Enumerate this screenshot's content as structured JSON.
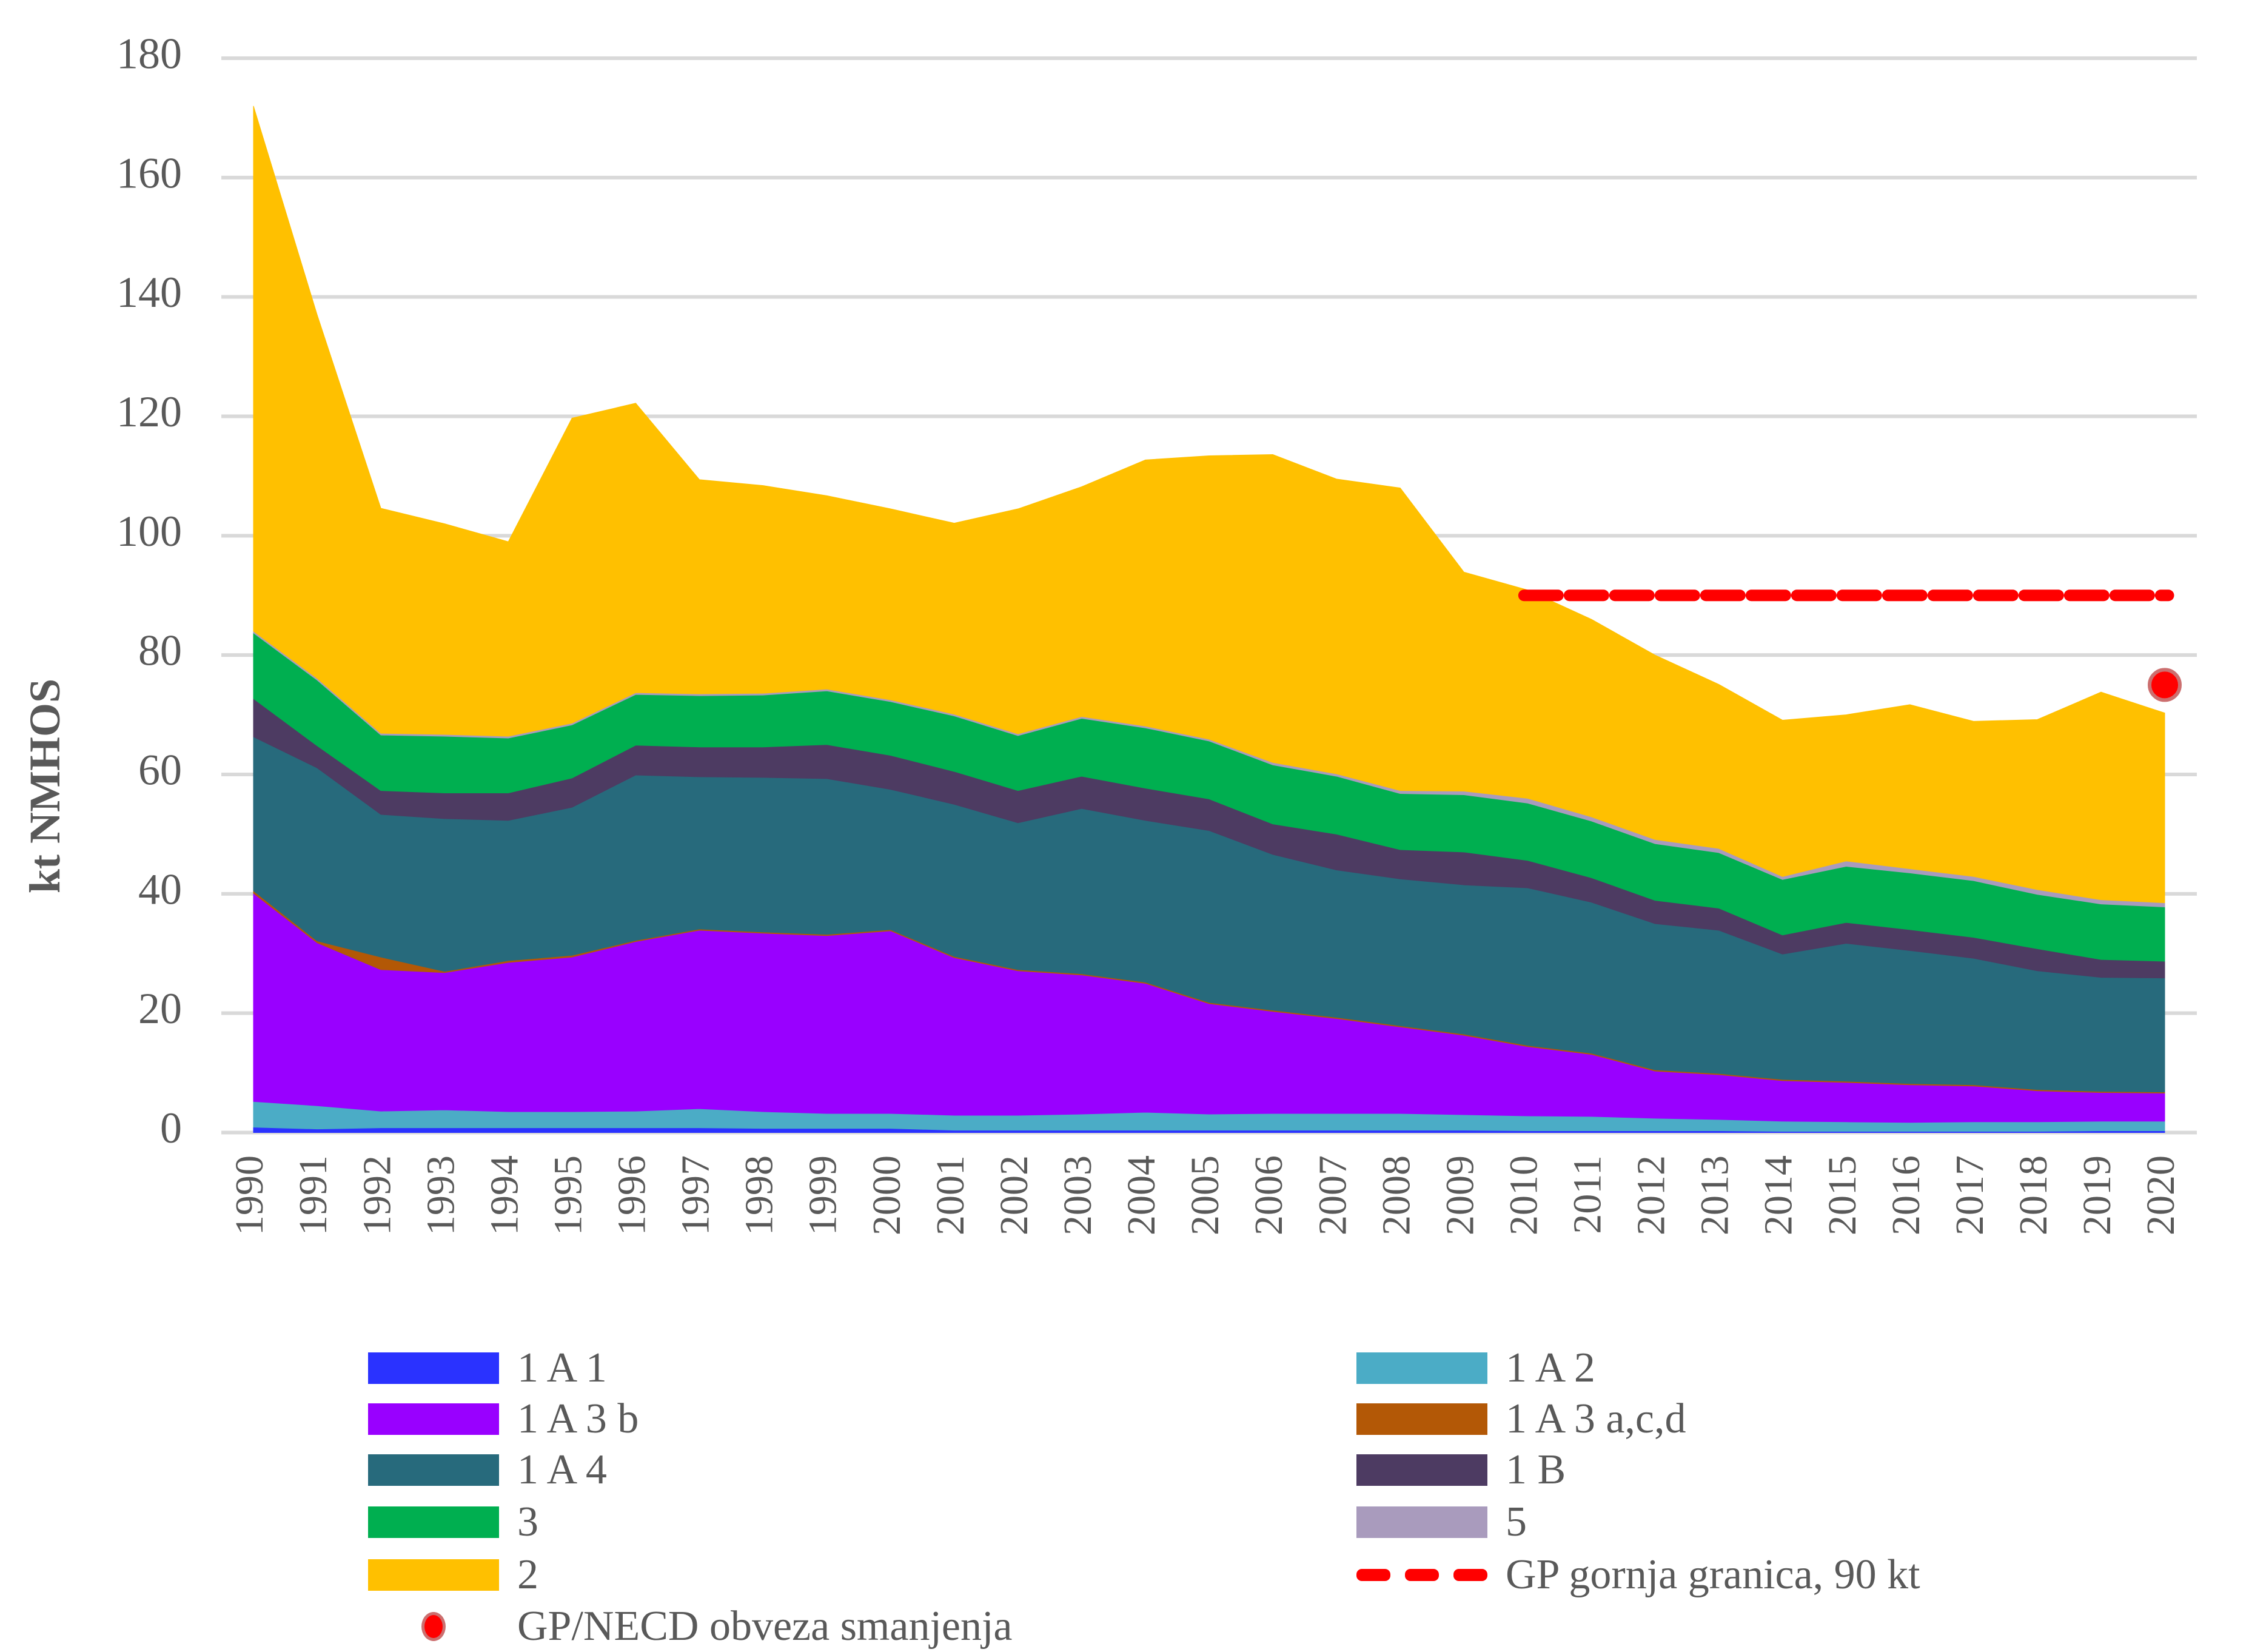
{
  "chart_data": {
    "type": "area",
    "stacked": true,
    "title": "",
    "xlabel": "",
    "ylabel": "kt NMHOS",
    "ylim": [
      0,
      180
    ],
    "yticks": [
      0,
      20,
      40,
      60,
      80,
      100,
      120,
      140,
      160,
      180
    ],
    "grid": "horizontal",
    "legend_position": "bottom",
    "categories": [
      "1990",
      "1991",
      "1992",
      "1993",
      "1994",
      "1995",
      "1996",
      "1997",
      "1998",
      "1999",
      "2000",
      "2001",
      "2002",
      "2003",
      "2004",
      "2005",
      "2006",
      "2007",
      "2008",
      "2009",
      "2010",
      "2011",
      "2012",
      "2013",
      "2014",
      "2015",
      "2016",
      "2017",
      "2018",
      "2019",
      "2020"
    ],
    "series": [
      {
        "name": "1 A 1",
        "color": "#2A32FF",
        "values": [
          0.9,
          0.6,
          0.8,
          0.8,
          0.8,
          0.8,
          0.8,
          0.8,
          0.7,
          0.7,
          0.7,
          0.4,
          0.4,
          0.4,
          0.4,
          0.4,
          0.4,
          0.4,
          0.4,
          0.4,
          0.3,
          0.3,
          0.3,
          0.3,
          0.2,
          0.2,
          0.2,
          0.2,
          0.2,
          0.3,
          0.3
        ]
      },
      {
        "name": "1 A 2",
        "color": "#4BACC6",
        "values": [
          4.3,
          3.9,
          2.8,
          3.0,
          2.7,
          2.7,
          2.8,
          3.2,
          2.8,
          2.5,
          2.5,
          2.5,
          2.5,
          2.7,
          3.0,
          2.7,
          2.8,
          2.8,
          2.8,
          2.6,
          2.5,
          2.4,
          2.1,
          1.9,
          1.7,
          1.6,
          1.5,
          1.6,
          1.6,
          1.6,
          1.6
        ]
      },
      {
        "name": "1 A 3 b",
        "color": "#9900FF",
        "values": [
          34.9,
          27.3,
          23.7,
          23.0,
          25.0,
          25.9,
          28.4,
          29.9,
          29.9,
          29.8,
          30.6,
          26.4,
          24.2,
          23.3,
          21.6,
          18.5,
          17.1,
          15.9,
          14.5,
          13.3,
          11.6,
          10.4,
          7.9,
          7.5,
          6.8,
          6.6,
          6.3,
          6.0,
          5.2,
          4.8,
          4.7
        ]
      },
      {
        "name": "1 A 3 a,c,d",
        "color": "#B35806",
        "values": [
          0.4,
          0.3,
          2.1,
          0.2,
          0.3,
          0.3,
          0.2,
          0.2,
          0.2,
          0.2,
          0.2,
          0.2,
          0.2,
          0.2,
          0.2,
          0.2,
          0.2,
          0.2,
          0.2,
          0.2,
          0.2,
          0.2,
          0.2,
          0.2,
          0.2,
          0.2,
          0.2,
          0.2,
          0.2,
          0.2,
          0.2
        ]
      },
      {
        "name": "1 A 4",
        "color": "#276A7C",
        "values": [
          25.8,
          29.0,
          23.9,
          25.6,
          23.5,
          24.8,
          27.7,
          25.5,
          25.9,
          26.1,
          23.5,
          25.5,
          24.6,
          27.7,
          27.1,
          28.8,
          26.1,
          24.7,
          24.6,
          25.0,
          26.4,
          25.3,
          24.5,
          24.0,
          21.0,
          23.1,
          22.3,
          21.2,
          19.9,
          19.1,
          19.1
        ]
      },
      {
        "name": "1 B",
        "color": "#4D3B62",
        "values": [
          6.4,
          3.7,
          4.0,
          4.3,
          4.6,
          4.9,
          5.0,
          5.0,
          5.1,
          5.7,
          5.7,
          5.5,
          5.4,
          5.4,
          5.4,
          5.3,
          5.1,
          6.0,
          4.9,
          5.5,
          4.6,
          4.1,
          3.9,
          3.7,
          3.2,
          3.5,
          3.5,
          3.5,
          3.7,
          3.0,
          2.8
        ]
      },
      {
        "name": "3",
        "color": "#00AF50",
        "values": [
          11.0,
          11.0,
          9.3,
          9.5,
          9.2,
          8.9,
          8.5,
          8.6,
          8.7,
          9.0,
          9.0,
          9.3,
          9.2,
          9.7,
          10.1,
          9.7,
          9.9,
          9.7,
          9.4,
          9.6,
          9.6,
          9.5,
          9.5,
          9.3,
          9.3,
          9.4,
          9.5,
          9.5,
          9.1,
          9.3,
          9.1
        ]
      },
      {
        "name": "5",
        "color": "#A99BBD",
        "values": [
          0.3,
          0.3,
          0.3,
          0.3,
          0.3,
          0.3,
          0.3,
          0.3,
          0.3,
          0.3,
          0.3,
          0.3,
          0.3,
          0.3,
          0.3,
          0.3,
          0.4,
          0.4,
          0.5,
          0.6,
          0.8,
          0.7,
          0.7,
          0.7,
          0.5,
          0.9,
          0.7,
          0.7,
          0.8,
          0.7,
          0.7
        ]
      },
      {
        "name": "2",
        "color": "#FFC000",
        "values": [
          88.0,
          60.9,
          37.7,
          35.3,
          32.6,
          51.1,
          48.5,
          35.9,
          34.8,
          32.4,
          32.0,
          32.0,
          37.7,
          38.5,
          44.6,
          47.5,
          51.6,
          49.4,
          50.7,
          36.7,
          34.9,
          33.1,
          30.9,
          27.5,
          26.2,
          24.5,
          27.5,
          26.0,
          28.5,
          34.8,
          31.8
        ]
      }
    ],
    "reference_line": {
      "name": "GP gornja granica, 90 kt",
      "value": 90,
      "from": "2010",
      "to": "2020",
      "color": "#FF0000",
      "style": "dashed"
    },
    "marker": {
      "name": "GP/NECD obveza smanjenja",
      "x": "2020",
      "y": 75,
      "color": "#FF0000",
      "edge_color": "#CC6F6F"
    }
  },
  "legend": {
    "items": [
      {
        "label": "1 A 1",
        "kind": "swatch",
        "color": "#2A32FF"
      },
      {
        "label": "1 A 2",
        "kind": "swatch",
        "color": "#4BACC6"
      },
      {
        "label": "1 A 3 b",
        "kind": "swatch",
        "color": "#9900FF"
      },
      {
        "label": "1 A 3 a,c,d",
        "kind": "swatch",
        "color": "#B35806"
      },
      {
        "label": "1 A 4",
        "kind": "swatch",
        "color": "#276A7C"
      },
      {
        "label": "1 B",
        "kind": "swatch",
        "color": "#4D3B62"
      },
      {
        "label": "3",
        "kind": "swatch",
        "color": "#00AF50"
      },
      {
        "label": "5",
        "kind": "swatch",
        "color": "#A99BBD"
      },
      {
        "label": "2",
        "kind": "swatch",
        "color": "#FFC000"
      },
      {
        "label": "GP gornja granica, 90 kt",
        "kind": "dashed-line",
        "color": "#FF0000"
      },
      {
        "label": "GP/NECD obveza smanjenja",
        "kind": "dot",
        "color": "#FF0000"
      }
    ]
  }
}
